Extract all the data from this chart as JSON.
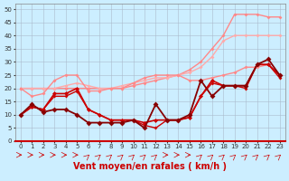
{
  "x": [
    0,
    1,
    2,
    3,
    4,
    5,
    6,
    7,
    8,
    9,
    10,
    11,
    12,
    13,
    14,
    15,
    16,
    17,
    18,
    19,
    20,
    21,
    22,
    23
  ],
  "lines": [
    {
      "y": [
        20,
        20,
        20,
        20,
        20,
        20,
        20,
        20,
        20,
        20,
        21,
        22,
        23,
        24,
        25,
        27,
        30,
        35,
        40,
        48,
        48,
        48,
        47,
        47
      ],
      "color": "#ff8888",
      "lw": 1.0,
      "ms": 2.0
    },
    {
      "y": [
        20,
        20,
        20,
        20,
        21,
        22,
        21,
        20,
        20,
        21,
        22,
        23,
        24,
        24,
        25,
        26,
        28,
        32,
        38,
        40,
        40,
        40,
        40,
        40
      ],
      "color": "#ffaaaa",
      "lw": 1.0,
      "ms": 2.0
    },
    {
      "y": [
        20,
        17,
        18,
        23,
        25,
        25,
        19,
        19,
        20,
        20,
        22,
        24,
        25,
        25,
        25,
        23,
        23,
        24,
        25,
        26,
        28,
        28,
        29,
        25
      ],
      "color": "#ff8888",
      "lw": 1.0,
      "ms": 2.0
    },
    {
      "y": [
        10,
        13,
        12,
        18,
        18,
        20,
        12,
        10,
        8,
        8,
        8,
        7,
        8,
        8,
        8,
        9,
        17,
        23,
        21,
        21,
        21,
        29,
        29,
        25
      ],
      "color": "#cc0000",
      "lw": 1.2,
      "ms": 2.5
    },
    {
      "y": [
        10,
        13,
        12,
        17,
        17,
        19,
        12,
        10,
        8,
        8,
        8,
        6,
        5,
        8,
        8,
        9,
        17,
        22,
        21,
        21,
        20,
        29,
        29,
        24
      ],
      "color": "#cc0000",
      "lw": 1.0,
      "ms": 2.0
    },
    {
      "y": [
        10,
        14,
        11,
        12,
        12,
        10,
        7,
        7,
        7,
        7,
        8,
        5,
        14,
        8,
        8,
        10,
        23,
        17,
        21,
        21,
        21,
        29,
        31,
        25
      ],
      "color": "#880000",
      "lw": 1.3,
      "ms": 3.0
    }
  ],
  "xlabel": "Vent moyen/en rafales ( km/h )",
  "xlim": [
    -0.5,
    23.5
  ],
  "ylim": [
    0,
    52
  ],
  "yticks": [
    0,
    5,
    10,
    15,
    20,
    25,
    30,
    35,
    40,
    45,
    50
  ],
  "xticks": [
    0,
    1,
    2,
    3,
    4,
    5,
    6,
    7,
    8,
    9,
    10,
    11,
    12,
    13,
    14,
    15,
    16,
    17,
    18,
    19,
    20,
    21,
    22,
    23
  ],
  "bg_color": "#cceeff",
  "grid_color": "#aabbcc",
  "xlabel_color": "#cc0000",
  "xlabel_fontsize": 7.0,
  "tick_fontsize": 5.0,
  "diagonal_arrows": [
    6,
    7,
    8,
    9,
    10,
    11,
    12,
    16,
    17,
    18,
    19,
    20,
    21,
    22,
    23
  ]
}
